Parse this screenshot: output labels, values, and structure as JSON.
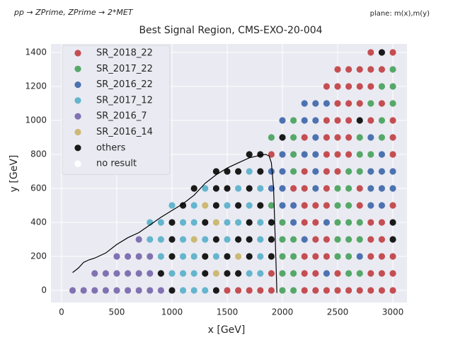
{
  "chart_data": {
    "type": "scatter",
    "title": "Best Signal Region, CMS-EXO-20-004",
    "process": "pp → ZPrime, ZPrime → 2*MET",
    "plane": "plane: m(x),m(y)",
    "x_label": "x [GeV]",
    "y_label": "y [GeV]",
    "xlim": [
      -96,
      3128
    ],
    "ylim": [
      -71,
      1450
    ],
    "xticks": [
      0,
      500,
      1000,
      1500,
      2000,
      2500,
      3000
    ],
    "yticks": [
      0,
      200,
      400,
      600,
      800,
      1000,
      1200,
      1400
    ],
    "grid": true,
    "legend_position": "upper left",
    "series": [
      {
        "name": "SR_2018_22",
        "color": "#c44e52",
        "x": [
          1500,
          1600,
          1700,
          1800,
          1900,
          2200,
          2300,
          2400,
          2500,
          2600,
          2700,
          2800,
          2900,
          3000,
          1900,
          2200,
          2300,
          2500,
          2800,
          2900,
          3000,
          2200,
          2300,
          2400,
          2800,
          2900,
          3000,
          2300,
          2400,
          2800,
          2900,
          2200,
          2300,
          2800,
          2900,
          2200,
          2300,
          2400,
          2700,
          3000,
          2100,
          2200,
          2400,
          2700,
          2200,
          2400,
          2500,
          1900,
          2400,
          2500,
          2600,
          3000,
          2200,
          2400,
          2500,
          2600,
          3000,
          2400,
          2500,
          2600,
          2800,
          3000,
          2500,
          2600,
          2700,
          2900,
          2400,
          2500,
          2600,
          2700,
          2800,
          2500,
          2600,
          2700,
          2800,
          2900,
          2800,
          3000
        ],
        "y": [
          0,
          0,
          0,
          0,
          0,
          0,
          0,
          0,
          0,
          0,
          0,
          0,
          0,
          0,
          100,
          100,
          100,
          100,
          100,
          100,
          100,
          200,
          200,
          200,
          200,
          200,
          200,
          300,
          300,
          300,
          300,
          400,
          400,
          400,
          400,
          500,
          500,
          500,
          500,
          500,
          600,
          600,
          600,
          600,
          700,
          700,
          700,
          800,
          800,
          800,
          800,
          800,
          900,
          900,
          900,
          900,
          900,
          1000,
          1000,
          1000,
          1000,
          1000,
          1100,
          1100,
          1100,
          1100,
          1200,
          1200,
          1200,
          1200,
          1200,
          1300,
          1300,
          1300,
          1300,
          1300,
          1400,
          1400
        ]
      },
      {
        "name": "SR_2017_22",
        "color": "#55a868",
        "x": [
          2000,
          2100,
          2000,
          2100,
          2600,
          2700,
          2000,
          2100,
          2500,
          2600,
          2000,
          2100,
          2500,
          2600,
          2700,
          2000,
          2500,
          2600,
          2700,
          1900,
          2500,
          2600,
          2500,
          2600,
          2100,
          2600,
          2700,
          2100,
          2700,
          2800,
          1900,
          2100,
          2700,
          2900,
          2100,
          2900,
          2800,
          3000,
          2900,
          3000,
          3000
        ],
        "y": [
          0,
          0,
          100,
          100,
          100,
          100,
          200,
          200,
          200,
          200,
          300,
          300,
          300,
          300,
          300,
          400,
          400,
          400,
          400,
          500,
          500,
          500,
          600,
          600,
          700,
          700,
          700,
          800,
          800,
          800,
          900,
          900,
          900,
          900,
          1000,
          1000,
          1100,
          1100,
          1200,
          1200,
          1300
        ]
      },
      {
        "name": "SR_2016_22",
        "color": "#4c72b0",
        "x": [
          2400,
          2700,
          2200,
          2100,
          2400,
          2000,
          2100,
          2800,
          2900,
          1900,
          2000,
          2300,
          2800,
          2900,
          3000,
          1900,
          2000,
          2300,
          2800,
          2900,
          3000,
          2000,
          2200,
          2300,
          2900,
          2300,
          2800,
          2000,
          2200,
          2300,
          2200,
          2300,
          2400
        ],
        "y": [
          100,
          200,
          300,
          400,
          400,
          500,
          500,
          500,
          500,
          600,
          600,
          600,
          600,
          600,
          600,
          700,
          700,
          700,
          700,
          700,
          700,
          800,
          800,
          800,
          800,
          900,
          900,
          1000,
          1000,
          1000,
          1100,
          1100,
          1100
        ]
      },
      {
        "name": "SR_2017_12",
        "color": "#64b5cd",
        "x": [
          1100,
          1200,
          1300,
          1000,
          1100,
          1200,
          1700,
          1800,
          900,
          1100,
          1200,
          1400,
          1800,
          800,
          900,
          1100,
          1300,
          1500,
          1800,
          800,
          900,
          1100,
          1200,
          1500,
          1600,
          1800,
          1000,
          1200,
          1500,
          1700,
          1300,
          1600,
          1800,
          1700
        ],
        "y": [
          0,
          0,
          0,
          100,
          100,
          100,
          100,
          100,
          200,
          200,
          200,
          200,
          200,
          300,
          300,
          300,
          300,
          300,
          300,
          400,
          400,
          400,
          400,
          400,
          400,
          400,
          500,
          500,
          500,
          500,
          600,
          600,
          600,
          700
        ]
      },
      {
        "name": "SR_2016_7",
        "color": "#8172b2",
        "x": [
          100,
          200,
          300,
          400,
          500,
          600,
          700,
          800,
          900,
          300,
          400,
          500,
          600,
          700,
          800,
          500,
          600,
          700,
          800,
          700
        ],
        "y": [
          0,
          0,
          0,
          0,
          0,
          0,
          0,
          0,
          0,
          100,
          100,
          100,
          100,
          100,
          100,
          200,
          200,
          200,
          200,
          300
        ]
      },
      {
        "name": "SR_2016_14",
        "color": "#ccb974",
        "x": [
          1400,
          1600,
          1200,
          1400,
          1300
        ],
        "y": [
          100,
          200,
          300,
          400,
          500
        ]
      },
      {
        "name": "others",
        "color": "#1a1a1a",
        "x": [
          1000,
          1400,
          900,
          1300,
          1500,
          1600,
          1000,
          1300,
          1500,
          1700,
          1900,
          1000,
          1400,
          1600,
          1700,
          1900,
          3000,
          1000,
          1300,
          1700,
          1900,
          3000,
          1100,
          1400,
          1600,
          1800,
          1200,
          1400,
          1500,
          1700,
          1400,
          1500,
          1600,
          1800,
          1700,
          1800,
          2000,
          2700,
          2900
        ],
        "y": [
          0,
          0,
          100,
          100,
          100,
          100,
          200,
          200,
          200,
          200,
          200,
          300,
          300,
          300,
          300,
          300,
          300,
          400,
          400,
          400,
          400,
          400,
          500,
          500,
          500,
          500,
          600,
          600,
          600,
          600,
          700,
          700,
          700,
          700,
          800,
          800,
          900,
          1000,
          1400
        ]
      },
      {
        "name": "no result",
        "color": "#ffffff",
        "x": [],
        "y": []
      }
    ],
    "contour": {
      "color": "#000000",
      "x": [
        100,
        150,
        200,
        250,
        300,
        400,
        500,
        600,
        700,
        800,
        900,
        1000,
        1100,
        1200,
        1300,
        1400,
        1500,
        1600,
        1700,
        1800,
        1850,
        1880,
        1900,
        1920,
        1930,
        1940,
        1950
      ],
      "y": [
        105,
        130,
        165,
        180,
        190,
        220,
        270,
        310,
        340,
        385,
        430,
        470,
        510,
        560,
        630,
        680,
        720,
        750,
        780,
        795,
        800,
        790,
        750,
        600,
        400,
        200,
        -15
      ]
    }
  }
}
